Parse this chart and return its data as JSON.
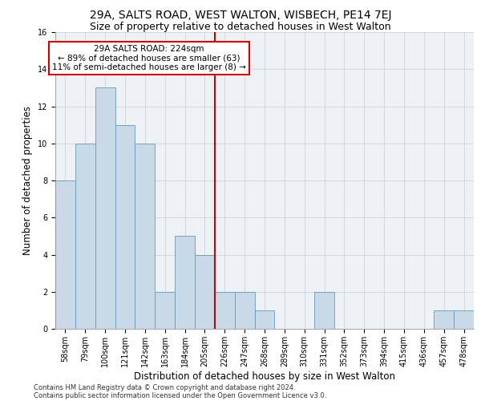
{
  "title1": "29A, SALTS ROAD, WEST WALTON, WISBECH, PE14 7EJ",
  "title2": "Size of property relative to detached houses in West Walton",
  "xlabel": "Distribution of detached houses by size in West Walton",
  "ylabel": "Number of detached properties",
  "footer1": "Contains HM Land Registry data © Crown copyright and database right 2024.",
  "footer2": "Contains public sector information licensed under the Open Government Licence v3.0.",
  "annotation_line1": "29A SALTS ROAD: 224sqm",
  "annotation_line2": "← 89% of detached houses are smaller (63)",
  "annotation_line3": "11% of semi-detached houses are larger (8) →",
  "bar_labels": [
    "58sqm",
    "79sqm",
    "100sqm",
    "121sqm",
    "142sqm",
    "163sqm",
    "184sqm",
    "205sqm",
    "226sqm",
    "247sqm",
    "268sqm",
    "289sqm",
    "310sqm",
    "331sqm",
    "352sqm",
    "373sqm",
    "394sqm",
    "415sqm",
    "436sqm",
    "457sqm",
    "478sqm"
  ],
  "bar_values": [
    8,
    10,
    13,
    11,
    10,
    2,
    5,
    4,
    2,
    2,
    1,
    0,
    0,
    2,
    0,
    0,
    0,
    0,
    0,
    1,
    1
  ],
  "bar_color": "#c9d9e8",
  "bar_edge_color": "#6699bb",
  "vline_color": "#cc0000",
  "ylim": [
    0,
    16
  ],
  "yticks": [
    0,
    2,
    4,
    6,
    8,
    10,
    12,
    14,
    16
  ],
  "bg_color": "#eef2f7",
  "annotation_box_color": "#ffffff",
  "annotation_box_edge": "#cc0000",
  "title1_fontsize": 10,
  "title2_fontsize": 9,
  "xlabel_fontsize": 8.5,
  "ylabel_fontsize": 8.5,
  "annotation_fontsize": 7.5,
  "tick_fontsize": 7,
  "footer_fontsize": 6
}
